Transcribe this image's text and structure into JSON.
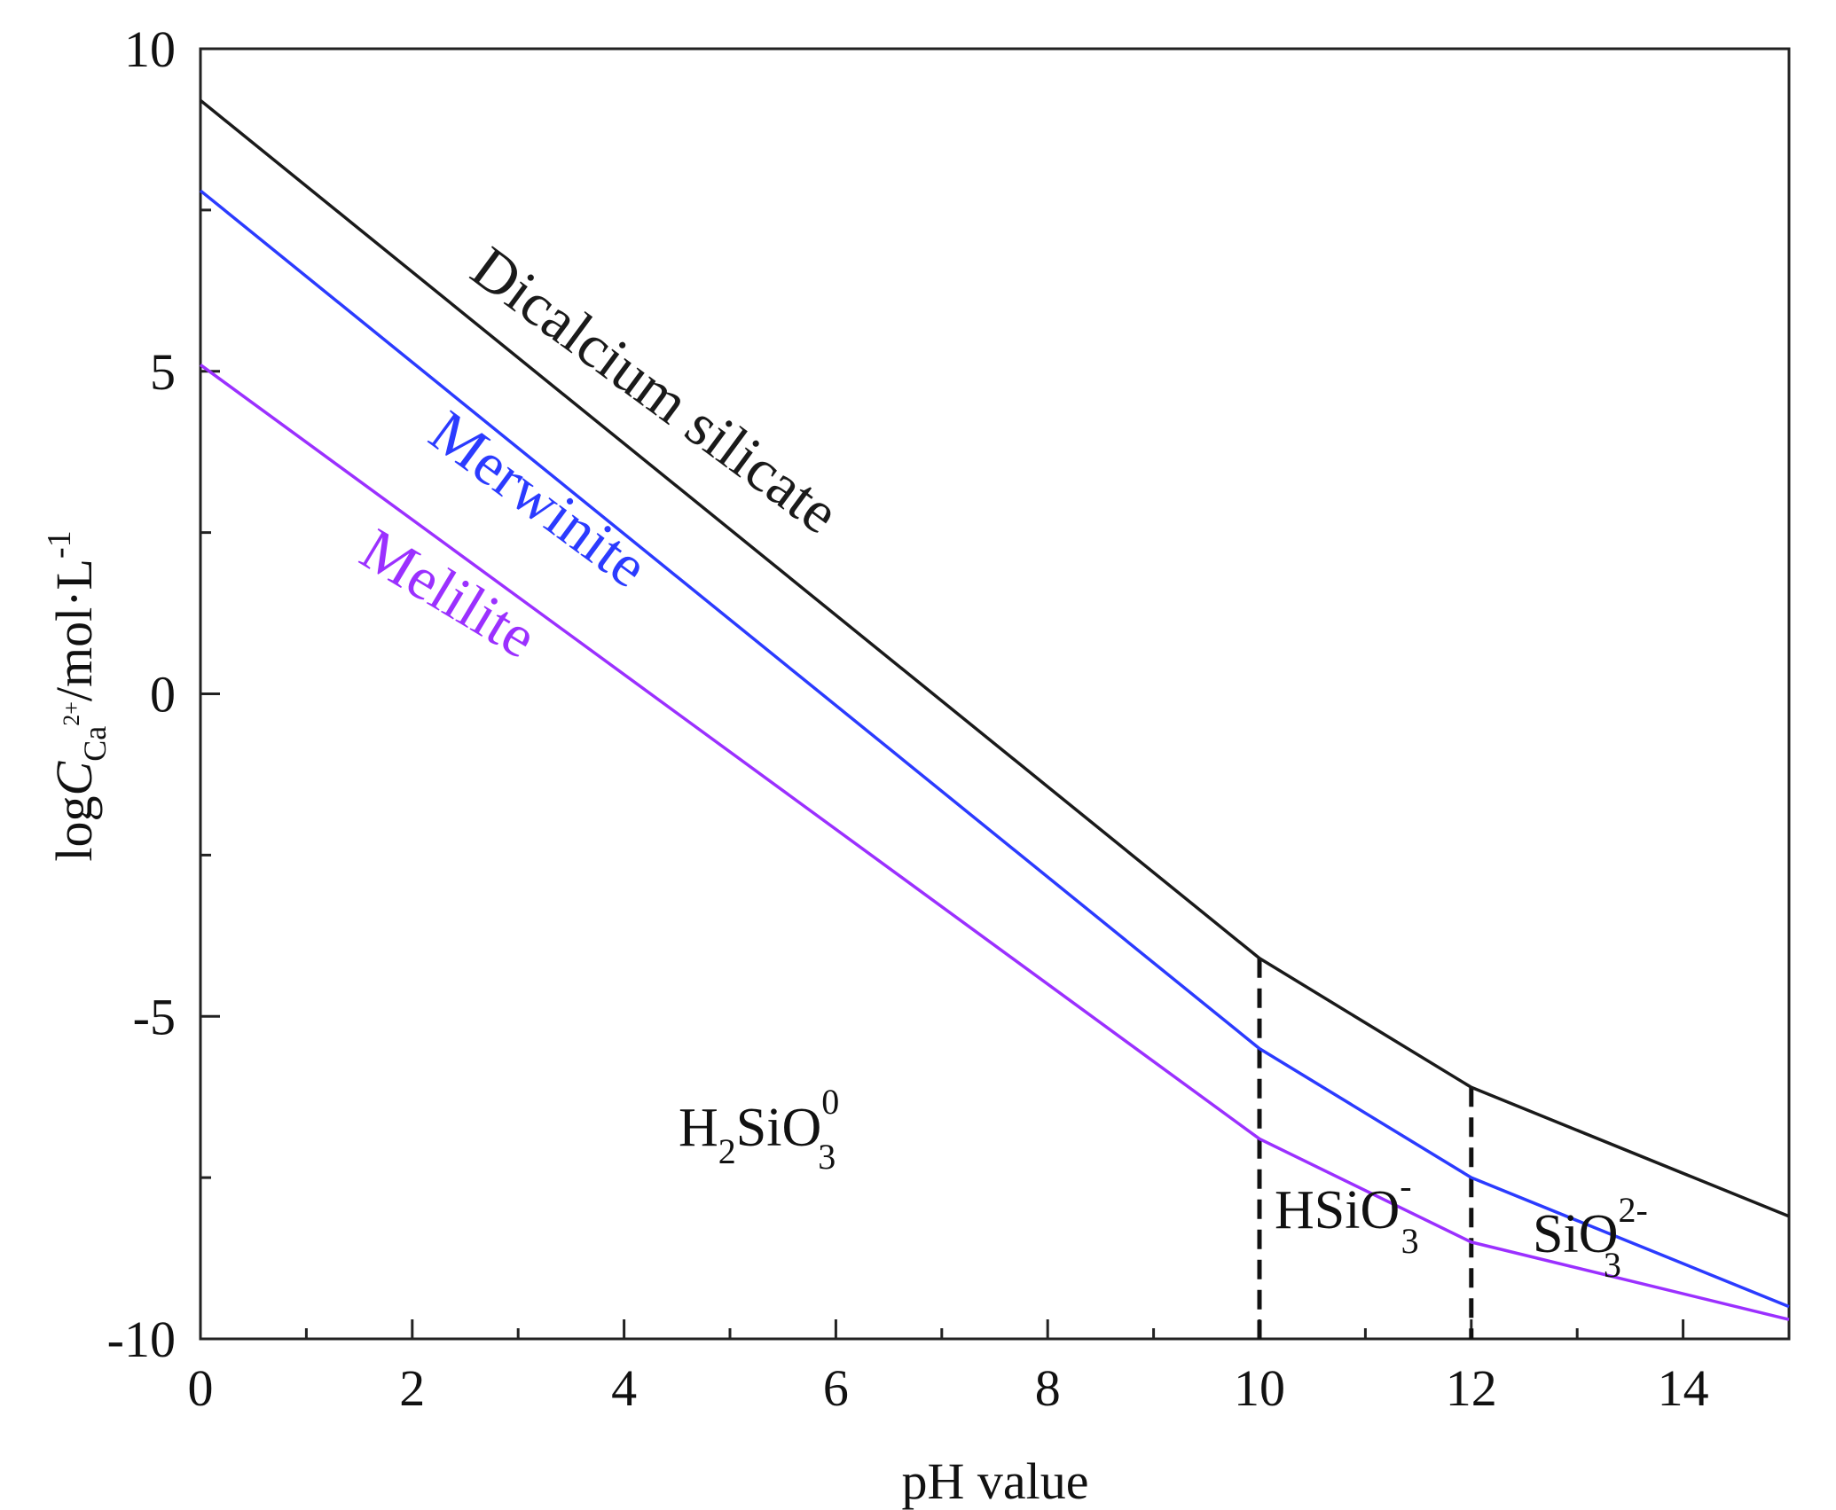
{
  "chart_data": {
    "type": "line",
    "title": "",
    "xlabel": "pH value",
    "ylabel": {
      "prefix": "log",
      "var": "C",
      "sub": "Ca",
      "subsup": "2+",
      "unit": "/mol·L",
      "unitsup": "-1"
    },
    "xlim": [
      0,
      15
    ],
    "ylim": [
      -10,
      10
    ],
    "xticks": [
      0,
      2,
      4,
      6,
      8,
      10,
      12,
      14
    ],
    "yticks": [
      10,
      5,
      0,
      -5,
      -10
    ],
    "xtick_labels": [
      "0",
      "2",
      "4",
      "6",
      "8",
      "10",
      "12",
      "14"
    ],
    "ytick_labels": [
      "10",
      "5",
      "0",
      "-5",
      "-10"
    ],
    "series": [
      {
        "name": "Dicalcium silicate",
        "color": "#1a1a1a",
        "x": [
          0,
          10,
          12,
          15
        ],
        "y": [
          9.2,
          -4.1,
          -6.1,
          -8.1
        ]
      },
      {
        "name": "Merwinite",
        "color": "#2b3bff",
        "x": [
          0,
          10,
          12,
          15
        ],
        "y": [
          7.8,
          -5.5,
          -7.5,
          -9.5
        ]
      },
      {
        "name": "Melilite",
        "color": "#9b30ff",
        "x": [
          0,
          10,
          12,
          15
        ],
        "y": [
          5.1,
          -6.9,
          -8.5,
          -9.7
        ]
      }
    ],
    "vlines": [
      10,
      12
    ],
    "annotations": [
      {
        "base": "H",
        "sub1": "2",
        "mid": "SiO",
        "sub2": "3",
        "sup": "0"
      },
      {
        "base": "HSiO",
        "sub": "3",
        "sup": "-"
      },
      {
        "base": "SiO",
        "sub": "3",
        "sup": "2-"
      }
    ]
  }
}
